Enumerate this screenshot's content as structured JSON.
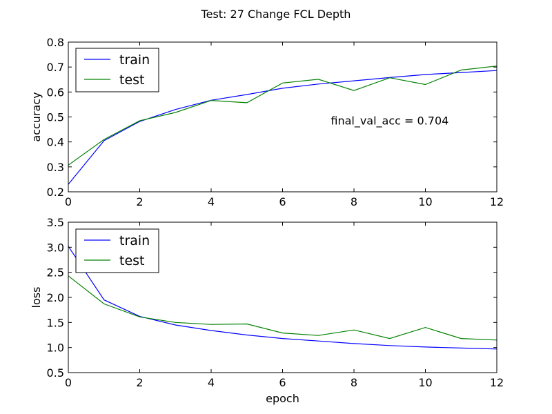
{
  "figure": {
    "suptitle": "Test: 27 Change FCL Depth"
  },
  "chart_data": [
    {
      "type": "line",
      "title": "",
      "xlabel": "",
      "ylabel": "accuracy",
      "xlim": [
        0,
        12
      ],
      "ylim": [
        0.2,
        0.8
      ],
      "x_ticks": [
        0,
        2,
        4,
        6,
        8,
        10,
        12
      ],
      "x_tick_labels": [
        "0",
        "2",
        "4",
        "6",
        "8",
        "10",
        "12"
      ],
      "y_ticks": [
        0.2,
        0.3,
        0.4,
        0.5,
        0.6,
        0.7,
        0.8
      ],
      "y_tick_labels": [
        "0.2",
        "0.3",
        "0.4",
        "0.5",
        "0.6",
        "0.7",
        "0.8"
      ],
      "grid": false,
      "legend_position": "upper-left",
      "annotation": "final_val_acc = 0.704",
      "x": [
        0,
        1,
        2,
        3,
        4,
        5,
        6,
        7,
        8,
        9,
        10,
        11,
        12
      ],
      "series": [
        {
          "name": "train",
          "color": "#0000ff",
          "values": [
            0.23,
            0.405,
            0.482,
            0.53,
            0.567,
            0.59,
            0.615,
            0.632,
            0.645,
            0.658,
            0.67,
            0.678,
            0.686
          ]
        },
        {
          "name": "test",
          "color": "#008000",
          "values": [
            0.307,
            0.41,
            0.485,
            0.518,
            0.566,
            0.557,
            0.636,
            0.651,
            0.606,
            0.657,
            0.63,
            0.688,
            0.704
          ]
        }
      ]
    },
    {
      "type": "line",
      "title": "",
      "xlabel": "epoch",
      "ylabel": "loss",
      "xlim": [
        0,
        12
      ],
      "ylim": [
        0.5,
        3.5
      ],
      "x_ticks": [
        0,
        2,
        4,
        6,
        8,
        10,
        12
      ],
      "x_tick_labels": [
        "0",
        "2",
        "4",
        "6",
        "8",
        "10",
        "12"
      ],
      "y_ticks": [
        0.5,
        1.0,
        1.5,
        2.0,
        2.5,
        3.0,
        3.5
      ],
      "y_tick_labels": [
        "0.5",
        "1.0",
        "1.5",
        "2.0",
        "2.5",
        "3.0",
        "3.5"
      ],
      "grid": false,
      "legend_position": "upper-left",
      "x": [
        0,
        1,
        2,
        3,
        4,
        5,
        6,
        7,
        8,
        9,
        10,
        11,
        12
      ],
      "series": [
        {
          "name": "train",
          "color": "#0000ff",
          "values": [
            3.02,
            1.95,
            1.62,
            1.45,
            1.34,
            1.25,
            1.18,
            1.13,
            1.08,
            1.04,
            1.01,
            0.99,
            0.97
          ]
        },
        {
          "name": "test",
          "color": "#008000",
          "values": [
            2.43,
            1.87,
            1.61,
            1.5,
            1.46,
            1.47,
            1.29,
            1.24,
            1.35,
            1.18,
            1.4,
            1.18,
            1.15
          ]
        }
      ]
    }
  ]
}
